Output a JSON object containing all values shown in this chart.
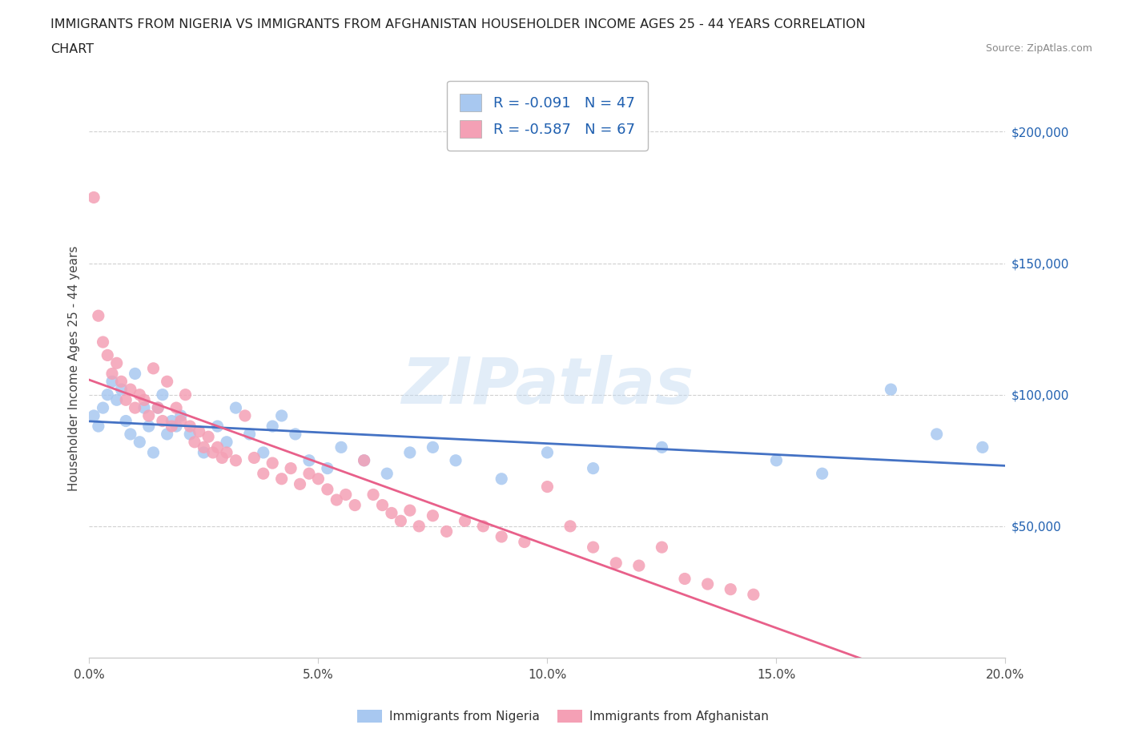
{
  "title_line1": "IMMIGRANTS FROM NIGERIA VS IMMIGRANTS FROM AFGHANISTAN HOUSEHOLDER INCOME AGES 25 - 44 YEARS CORRELATION",
  "title_line2": "CHART",
  "source": "Source: ZipAtlas.com",
  "ylabel": "Householder Income Ages 25 - 44 years",
  "xlim": [
    0.0,
    0.2
  ],
  "ylim": [
    0,
    220000
  ],
  "yticks": [
    0,
    50000,
    100000,
    150000,
    200000
  ],
  "ytick_labels": [
    "",
    "$50,000",
    "$100,000",
    "$150,000",
    "$200,000"
  ],
  "xticks": [
    0.0,
    0.05,
    0.1,
    0.15,
    0.2
  ],
  "xtick_labels": [
    "0.0%",
    "5.0%",
    "10.0%",
    "15.0%",
    "20.0%"
  ],
  "nigeria_color": "#a8c8f0",
  "nigeria_line_color": "#4472c4",
  "afghanistan_color": "#f4a0b5",
  "afghanistan_line_color": "#e8608a",
  "legend_text_color": "#2060b0",
  "R_nigeria": -0.091,
  "N_nigeria": 47,
  "R_afghanistan": -0.587,
  "N_afghanistan": 67,
  "watermark": "ZIPatlas",
  "nigeria_x": [
    0.001,
    0.002,
    0.003,
    0.004,
    0.005,
    0.006,
    0.007,
    0.008,
    0.009,
    0.01,
    0.011,
    0.012,
    0.013,
    0.014,
    0.015,
    0.016,
    0.017,
    0.018,
    0.019,
    0.02,
    0.022,
    0.025,
    0.028,
    0.03,
    0.032,
    0.035,
    0.038,
    0.04,
    0.042,
    0.045,
    0.048,
    0.052,
    0.055,
    0.06,
    0.065,
    0.07,
    0.075,
    0.08,
    0.09,
    0.1,
    0.11,
    0.125,
    0.15,
    0.16,
    0.175,
    0.185,
    0.195
  ],
  "nigeria_y": [
    92000,
    88000,
    95000,
    100000,
    105000,
    98000,
    102000,
    90000,
    85000,
    108000,
    82000,
    95000,
    88000,
    78000,
    95000,
    100000,
    85000,
    90000,
    88000,
    92000,
    85000,
    78000,
    88000,
    82000,
    95000,
    85000,
    78000,
    88000,
    92000,
    85000,
    75000,
    72000,
    80000,
    75000,
    70000,
    78000,
    80000,
    75000,
    68000,
    78000,
    72000,
    80000,
    75000,
    70000,
    102000,
    85000,
    80000
  ],
  "afghanistan_x": [
    0.001,
    0.002,
    0.003,
    0.004,
    0.005,
    0.006,
    0.007,
    0.008,
    0.009,
    0.01,
    0.011,
    0.012,
    0.013,
    0.014,
    0.015,
    0.016,
    0.017,
    0.018,
    0.019,
    0.02,
    0.021,
    0.022,
    0.023,
    0.024,
    0.025,
    0.026,
    0.027,
    0.028,
    0.029,
    0.03,
    0.032,
    0.034,
    0.036,
    0.038,
    0.04,
    0.042,
    0.044,
    0.046,
    0.048,
    0.05,
    0.052,
    0.054,
    0.056,
    0.058,
    0.06,
    0.062,
    0.064,
    0.066,
    0.068,
    0.07,
    0.072,
    0.075,
    0.078,
    0.082,
    0.086,
    0.09,
    0.095,
    0.1,
    0.105,
    0.11,
    0.115,
    0.12,
    0.125,
    0.13,
    0.135,
    0.14,
    0.145
  ],
  "afghanistan_y": [
    175000,
    130000,
    120000,
    115000,
    108000,
    112000,
    105000,
    98000,
    102000,
    95000,
    100000,
    98000,
    92000,
    110000,
    95000,
    90000,
    105000,
    88000,
    95000,
    90000,
    100000,
    88000,
    82000,
    86000,
    80000,
    84000,
    78000,
    80000,
    76000,
    78000,
    75000,
    92000,
    76000,
    70000,
    74000,
    68000,
    72000,
    66000,
    70000,
    68000,
    64000,
    60000,
    62000,
    58000,
    75000,
    62000,
    58000,
    55000,
    52000,
    56000,
    50000,
    54000,
    48000,
    52000,
    50000,
    46000,
    44000,
    65000,
    50000,
    42000,
    36000,
    35000,
    42000,
    30000,
    28000,
    26000,
    24000
  ],
  "background_color": "#ffffff",
  "grid_color": "#d0d0d0",
  "axis_color": "#cccccc",
  "label_color": "#444444",
  "source_color": "#888888"
}
